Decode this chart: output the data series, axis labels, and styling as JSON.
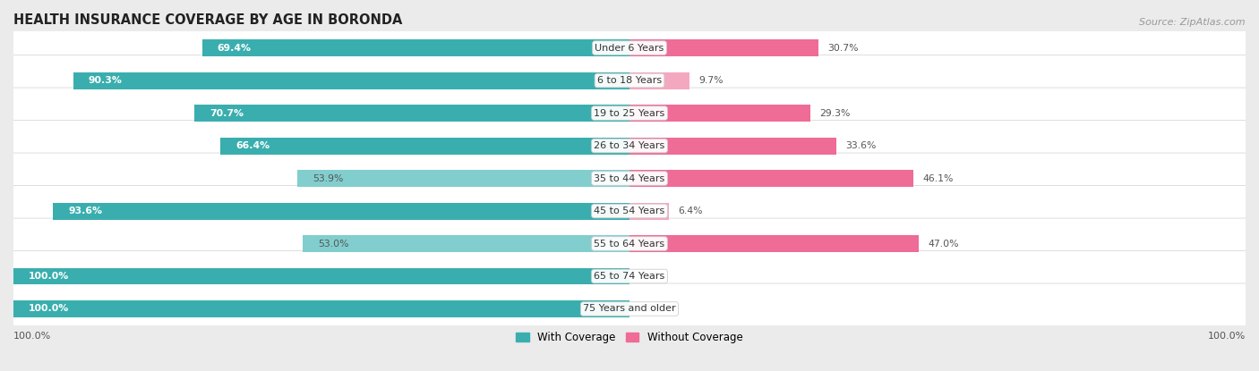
{
  "title": "HEALTH INSURANCE COVERAGE BY AGE IN BORONDA",
  "source": "Source: ZipAtlas.com",
  "categories": [
    "Under 6 Years",
    "6 to 18 Years",
    "19 to 25 Years",
    "26 to 34 Years",
    "35 to 44 Years",
    "45 to 54 Years",
    "55 to 64 Years",
    "65 to 74 Years",
    "75 Years and older"
  ],
  "with_coverage": [
    69.4,
    90.3,
    70.7,
    66.4,
    53.9,
    93.6,
    53.0,
    100.0,
    100.0
  ],
  "without_coverage": [
    30.7,
    9.7,
    29.3,
    33.6,
    46.1,
    6.4,
    47.0,
    0.0,
    0.0
  ],
  "color_with_dark": "#3AAEAE",
  "color_with_light": "#82CECE",
  "color_without_dark": "#EE6C96",
  "color_without_light": "#F4A8C0",
  "bg_color": "#ebebeb",
  "row_bg": "#ffffff",
  "title_color": "#222222",
  "source_color": "#999999",
  "label_white": "#ffffff",
  "label_dark": "#555555",
  "with_threshold": 65.0,
  "without_threshold": 25.0
}
